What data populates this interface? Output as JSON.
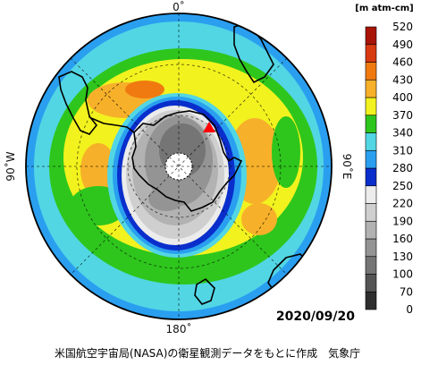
{
  "map": {
    "label_top": "0˚",
    "label_bottom": "180˚",
    "label_left": "90˚W",
    "label_right": "90˚E",
    "date": "2020/09/20",
    "credit": "米国航空宇宙局(NASA)の衛星観測データをもとに作成　気象庁",
    "marker_color": "#ff0000"
  },
  "colorbar": {
    "unit": "[m atm-cm]",
    "levels": [
      "0",
      "70",
      "100",
      "130",
      "160",
      "190",
      "220",
      "250",
      "280",
      "310",
      "340",
      "370",
      "400",
      "430",
      "460",
      "490",
      "520"
    ],
    "colors": [
      "#2e2e2e",
      "#555555",
      "#757575",
      "#949494",
      "#b2b2b2",
      "#cfcfcf",
      "#ececec",
      "#0a2ecc",
      "#2a9ff0",
      "#52d6e4",
      "#2ec61c",
      "#f2f21e",
      "#f7b02a",
      "#f07a10",
      "#d83a10",
      "#a81406"
    ]
  }
}
